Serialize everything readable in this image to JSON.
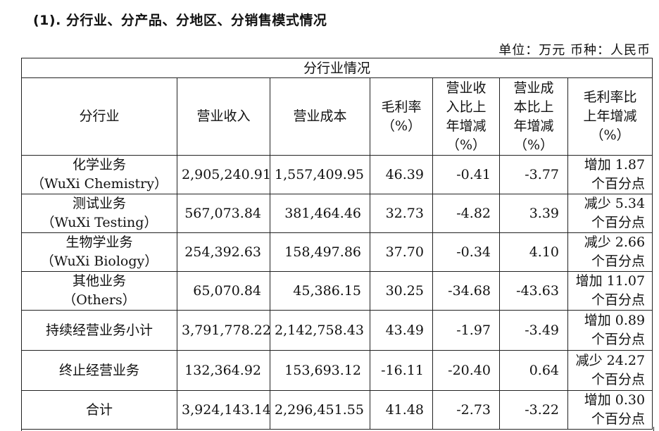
{
  "heading": "(1). 分行业、分产品、分地区、分销售模式情况",
  "unit_line": "单位：万元   币种：人民币",
  "table": {
    "caption": "分行业情况",
    "headers": {
      "industry": "分行业",
      "revenue": "营业收入",
      "cost": "营业成本",
      "margin_l1": "毛利率",
      "margin_l2": "（%）",
      "rev_chg_l1": "营业收",
      "rev_chg_l2": "入比上",
      "rev_chg_l3": "年增减",
      "rev_chg_l4": "（%）",
      "cost_chg_l1": "营业成",
      "cost_chg_l2": "本比上",
      "cost_chg_l3": "年增减",
      "cost_chg_l4": "（%）",
      "margin_chg_l1": "毛利率比",
      "margin_chg_l2": "上年增减",
      "margin_chg_l3": "（%）"
    },
    "rows": [
      {
        "name_l1": "化学业务",
        "name_l2": "（WuXi Chemistry）",
        "revenue": "2,905,240.91",
        "cost": "1,557,409.95",
        "margin": "46.39",
        "rev_chg": "-0.41",
        "cost_chg": "-3.77",
        "margin_chg_l1": "增加 1.87",
        "margin_chg_l2": "个百分点"
      },
      {
        "name_l1": "测试业务",
        "name_l2": "（WuXi Testing）",
        "revenue": "567,073.84",
        "cost": "381,464.46",
        "margin": "32.73",
        "rev_chg": "-4.82",
        "cost_chg": "3.39",
        "margin_chg_l1": "减少 5.34",
        "margin_chg_l2": "个百分点"
      },
      {
        "name_l1": "生物学业务",
        "name_l2": "（WuXi Biology）",
        "revenue": "254,392.63",
        "cost": "158,497.86",
        "margin": "37.70",
        "rev_chg": "-0.34",
        "cost_chg": "4.10",
        "margin_chg_l1": "减少 2.66",
        "margin_chg_l2": "个百分点"
      },
      {
        "name_l1": "其他业务",
        "name_l2": "（Others）",
        "revenue": "65,070.84",
        "cost": "45,386.15",
        "margin": "30.25",
        "rev_chg": "-34.68",
        "cost_chg": "-43.63",
        "margin_chg_l1": "增加 11.07",
        "margin_chg_l2": "个百分点"
      },
      {
        "name_l1": "持续经营业务小计",
        "name_l2": "",
        "revenue": "3,791,778.22",
        "cost": "2,142,758.43",
        "margin": "43.49",
        "rev_chg": "-1.97",
        "cost_chg": "-3.49",
        "margin_chg_l1": "增加 0.89",
        "margin_chg_l2": "个百分点"
      },
      {
        "name_l1": "终止经营业务",
        "name_l2": "",
        "revenue": "132,364.92",
        "cost": "153,693.12",
        "margin": "-16.11",
        "rev_chg": "-20.40",
        "cost_chg": "0.64",
        "margin_chg_l1": "减少 24.27",
        "margin_chg_l2": "个百分点"
      },
      {
        "name_l1": "合计",
        "name_l2": "",
        "revenue": "3,924,143.14",
        "cost": "2,296,451.55",
        "margin": "41.48",
        "rev_chg": "-2.73",
        "cost_chg": "-3.22",
        "margin_chg_l1": "增加 0.30",
        "margin_chg_l2": "个百分点"
      }
    ]
  }
}
